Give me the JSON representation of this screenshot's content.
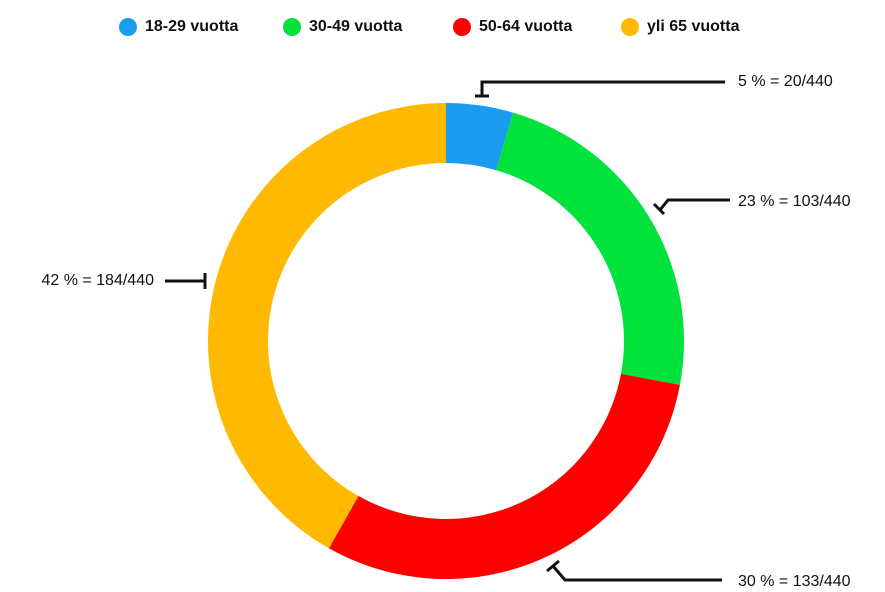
{
  "chart_data": {
    "type": "donut",
    "categories": [
      "18-29 vuotta",
      "30-49 vuotta",
      "50-64 vuotta",
      "yli 65 vuotta"
    ],
    "values": [
      20,
      103,
      133,
      184
    ],
    "value_labels": [
      "5 % = 20/440",
      "23 % = 103/440",
      "30 % = 133/440",
      "42 % = 184/440"
    ],
    "colors": [
      "#1a9cf0",
      "#00e23c",
      "#ff0000",
      "#ffb900"
    ],
    "legend": "top"
  }
}
